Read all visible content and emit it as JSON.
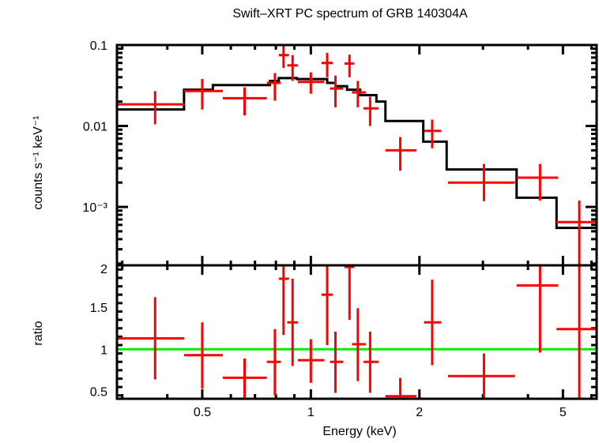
{
  "chart_data": [
    {
      "type": "scatter",
      "panel": "top",
      "title": "Swift–XRT PC spectrum of GRB 140304A",
      "xlabel": "Energy (keV)",
      "ylabel": "counts s⁻¹ keV⁻¹",
      "xscale": "log",
      "yscale": "log",
      "xlim": [
        0.29,
        6.2
      ],
      "ylim": [
        0.00019,
        0.1
      ],
      "yticks": [
        {
          "value": 0.1,
          "label": "0.1"
        },
        {
          "value": 0.01,
          "label": "0.01"
        },
        {
          "value": 0.001,
          "label": "10⁻³"
        }
      ],
      "series": [
        {
          "name": "data",
          "color": "#ff0000",
          "points": [
            {
              "x": 0.37,
              "xlo": 0.29,
              "xhi": 0.445,
              "y": 0.0185,
              "ylo": 0.0105,
              "yhi": 0.027
            },
            {
              "x": 0.5,
              "xlo": 0.445,
              "xhi": 0.57,
              "y": 0.027,
              "ylo": 0.016,
              "yhi": 0.038
            },
            {
              "x": 0.655,
              "xlo": 0.57,
              "xhi": 0.755,
              "y": 0.022,
              "ylo": 0.0135,
              "yhi": 0.03
            },
            {
              "x": 0.795,
              "xlo": 0.755,
              "xhi": 0.825,
              "y": 0.034,
              "ylo": 0.0205,
              "yhi": 0.045
            },
            {
              "x": 0.84,
              "xlo": 0.815,
              "xhi": 0.87,
              "y": 0.075,
              "ylo": 0.052,
              "yhi": 0.1
            },
            {
              "x": 0.89,
              "xlo": 0.86,
              "xhi": 0.92,
              "y": 0.056,
              "ylo": 0.036,
              "yhi": 0.075
            },
            {
              "x": 1.0,
              "xlo": 0.92,
              "xhi": 1.09,
              "y": 0.035,
              "ylo": 0.025,
              "yhi": 0.046
            },
            {
              "x": 1.11,
              "xlo": 1.07,
              "xhi": 1.15,
              "y": 0.06,
              "ylo": 0.04,
              "yhi": 0.08
            },
            {
              "x": 1.17,
              "xlo": 1.13,
              "xhi": 1.23,
              "y": 0.029,
              "ylo": 0.017,
              "yhi": 0.042
            },
            {
              "x": 1.28,
              "xlo": 1.24,
              "xhi": 1.32,
              "y": 0.059,
              "ylo": 0.04,
              "yhi": 0.076
            },
            {
              "x": 1.35,
              "xlo": 1.3,
              "xhi": 1.42,
              "y": 0.026,
              "ylo": 0.017,
              "yhi": 0.036
            },
            {
              "x": 1.46,
              "xlo": 1.4,
              "xhi": 1.54,
              "y": 0.0165,
              "ylo": 0.01,
              "yhi": 0.023
            },
            {
              "x": 1.77,
              "xlo": 1.61,
              "xhi": 1.96,
              "y": 0.005,
              "ylo": 0.0028,
              "yhi": 0.0073
            },
            {
              "x": 2.17,
              "xlo": 2.06,
              "xhi": 2.3,
              "y": 0.0087,
              "ylo": 0.0053,
              "yhi": 0.012
            },
            {
              "x": 3.02,
              "xlo": 2.4,
              "xhi": 3.68,
              "y": 0.002,
              "ylo": 0.00118,
              "yhi": 0.0034
            },
            {
              "x": 4.32,
              "xlo": 3.72,
              "xhi": 4.85,
              "y": 0.0023,
              "ylo": 0.0012,
              "yhi": 0.0034
            },
            {
              "x": 5.55,
              "xlo": 4.8,
              "xhi": 6.2,
              "y": 0.00065,
              "ylo": 0.00019,
              "yhi": 0.0012
            }
          ]
        },
        {
          "name": "model",
          "color": "#000000",
          "steps": [
            {
              "xlo": 0.29,
              "xhi": 0.445,
              "y": 0.016
            },
            {
              "xlo": 0.445,
              "xhi": 0.535,
              "y": 0.028
            },
            {
              "xlo": 0.535,
              "xhi": 0.77,
              "y": 0.032
            },
            {
              "xlo": 0.77,
              "xhi": 0.815,
              "y": 0.036
            },
            {
              "xlo": 0.815,
              "xhi": 0.915,
              "y": 0.039
            },
            {
              "xlo": 0.915,
              "xhi": 1.11,
              "y": 0.038
            },
            {
              "xlo": 1.11,
              "xhi": 1.17,
              "y": 0.034
            },
            {
              "xlo": 1.17,
              "xhi": 1.26,
              "y": 0.031
            },
            {
              "xlo": 1.26,
              "xhi": 1.37,
              "y": 0.028
            },
            {
              "xlo": 1.37,
              "xhi": 1.52,
              "y": 0.024
            },
            {
              "xlo": 1.52,
              "xhi": 1.61,
              "y": 0.02
            },
            {
              "xlo": 1.61,
              "xhi": 2.05,
              "y": 0.0115
            },
            {
              "xlo": 2.05,
              "xhi": 2.38,
              "y": 0.0064
            },
            {
              "xlo": 2.38,
              "xhi": 3.72,
              "y": 0.0029
            },
            {
              "xlo": 3.72,
              "xhi": 4.8,
              "y": 0.0013
            },
            {
              "xlo": 4.8,
              "xhi": 6.2,
              "y": 0.00055
            }
          ]
        }
      ]
    },
    {
      "type": "scatter",
      "panel": "bottom",
      "xlabel": "Energy (keV)",
      "ylabel": "ratio",
      "xscale": "log",
      "yscale": "linear",
      "xlim": [
        0.29,
        6.2
      ],
      "ylim": [
        0.41,
        2.0
      ],
      "xticks": [
        {
          "value": 0.5,
          "label": "0.5"
        },
        {
          "value": 1,
          "label": "1"
        },
        {
          "value": 2,
          "label": "2"
        },
        {
          "value": 5,
          "label": "5"
        }
      ],
      "yticks": [
        {
          "value": 0.5,
          "label": "0.5"
        },
        {
          "value": 1,
          "label": "1"
        },
        {
          "value": 1.5,
          "label": "1.5"
        },
        {
          "value": 2,
          "label": "2"
        }
      ],
      "reference_line": {
        "y": 1,
        "color": "#00ee00"
      },
      "series": [
        {
          "name": "ratio",
          "color": "#ff0000",
          "points": [
            {
              "x": 0.37,
              "xlo": 0.29,
              "xhi": 0.445,
              "y": 1.13,
              "ylo": 0.64,
              "yhi": 1.62
            },
            {
              "x": 0.5,
              "xlo": 0.445,
              "xhi": 0.57,
              "y": 0.93,
              "ylo": 0.53,
              "yhi": 1.32
            },
            {
              "x": 0.655,
              "xlo": 0.57,
              "xhi": 0.755,
              "y": 0.66,
              "ylo": 0.41,
              "yhi": 0.89
            },
            {
              "x": 0.795,
              "xlo": 0.755,
              "xhi": 0.825,
              "y": 0.85,
              "ylo": 0.45,
              "yhi": 1.24
            },
            {
              "x": 0.84,
              "xlo": 0.815,
              "xhi": 0.87,
              "y": 1.84,
              "ylo": 1.17,
              "yhi": 2.0
            },
            {
              "x": 0.89,
              "xlo": 0.86,
              "xhi": 0.92,
              "y": 1.32,
              "ylo": 0.8,
              "yhi": 1.84
            },
            {
              "x": 1.0,
              "xlo": 0.92,
              "xhi": 1.09,
              "y": 0.87,
              "ylo": 0.6,
              "yhi": 1.12
            },
            {
              "x": 1.11,
              "xlo": 1.07,
              "xhi": 1.15,
              "y": 1.65,
              "ylo": 1.05,
              "yhi": 2.0
            },
            {
              "x": 1.17,
              "xlo": 1.13,
              "xhi": 1.23,
              "y": 0.85,
              "ylo": 0.48,
              "yhi": 1.21
            },
            {
              "x": 1.28,
              "xlo": 1.24,
              "xhi": 1.32,
              "y": 1.98,
              "ylo": 1.35,
              "yhi": 2.0
            },
            {
              "x": 1.35,
              "xlo": 1.3,
              "xhi": 1.42,
              "y": 1.06,
              "ylo": 0.62,
              "yhi": 1.49
            },
            {
              "x": 1.46,
              "xlo": 1.4,
              "xhi": 1.54,
              "y": 0.85,
              "ylo": 0.48,
              "yhi": 1.21
            },
            {
              "x": 1.77,
              "xlo": 1.61,
              "xhi": 1.96,
              "y": 0.44,
              "ylo": 0.41,
              "yhi": 0.66
            },
            {
              "x": 2.17,
              "xlo": 2.06,
              "xhi": 2.3,
              "y": 1.32,
              "ylo": 0.81,
              "yhi": 1.83
            },
            {
              "x": 3.02,
              "xlo": 2.4,
              "xhi": 3.68,
              "y": 0.68,
              "ylo": 0.41,
              "yhi": 0.95
            },
            {
              "x": 4.32,
              "xlo": 3.72,
              "xhi": 4.85,
              "y": 1.76,
              "ylo": 0.96,
              "yhi": 2.0
            },
            {
              "x": 5.55,
              "xlo": 4.8,
              "xhi": 6.2,
              "y": 1.24,
              "ylo": 0.41,
              "yhi": 2.0
            }
          ]
        }
      ]
    }
  ]
}
